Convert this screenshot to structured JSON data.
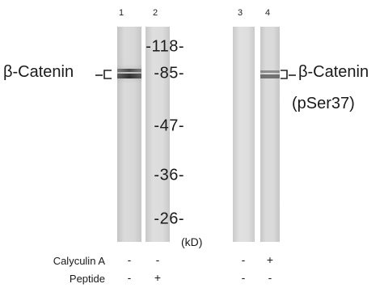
{
  "lanes": {
    "numbers": [
      "1",
      "2",
      "3",
      "4"
    ]
  },
  "markers": {
    "values": [
      "-118-",
      "-85-",
      "-47-",
      "-36-",
      "-26-"
    ],
    "unit": "(kD)"
  },
  "labels": {
    "left": "β-Catenin",
    "right_line1": "β-Catenin",
    "right_line2": "(pSer37)"
  },
  "treatments": {
    "rows": [
      {
        "name": "Calyculin A",
        "signs": [
          "-",
          "-",
          "-",
          "+"
        ]
      },
      {
        "name": "Peptide",
        "signs": [
          "-",
          "+",
          "-",
          "-"
        ]
      }
    ]
  },
  "colors": {
    "lane_bg": "#d3d3d3",
    "band_dark": "#3c3c3c",
    "band_medium": "#6e6e6e"
  }
}
